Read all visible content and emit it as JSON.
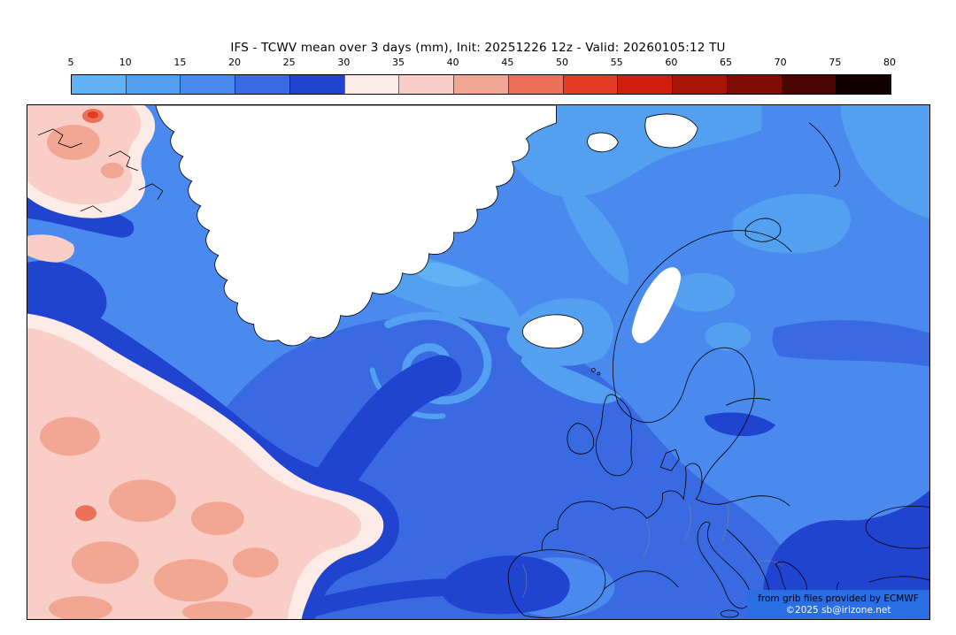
{
  "title": "IFS - TCWV mean over 3 days (mm), Init: 20251226 12z - Valid: 20260105:12 TU",
  "colorbar": {
    "unit": "mm",
    "ticks": [
      "5",
      "10",
      "15",
      "20",
      "25",
      "30",
      "35",
      "40",
      "45",
      "50",
      "55",
      "60",
      "65",
      "70",
      "75",
      "80"
    ],
    "segment_colors": [
      "#60b2f4",
      "#54a0f0",
      "#4a8aee",
      "#3a6ae2",
      "#2144d0",
      "#fcebe7",
      "#f8cec6",
      "#f2a694",
      "#ec7058",
      "#e43c24",
      "#d01d0e",
      "#a81408",
      "#7c0c04",
      "#4a0502",
      "#100100"
    ]
  },
  "attribution": {
    "provider_note": "from grib files provided by ECMWF",
    "copyright": "©2025 sb@irizone.net"
  }
}
